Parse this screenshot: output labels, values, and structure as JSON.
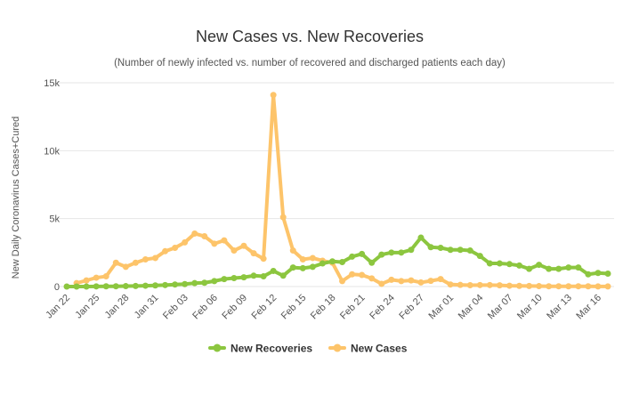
{
  "chart_data": {
    "type": "line",
    "title": "New Cases vs. New Recoveries",
    "subtitle": "(Number of newly infected vs. number of recovered and discharged patients each day)",
    "ylabel": "New Daily Coronavirus Cases+Cured",
    "ylim": [
      0,
      15000
    ],
    "yticks": [
      0,
      5000,
      10000,
      15000
    ],
    "ytick_labels": [
      "0",
      "5k",
      "10k",
      "15k"
    ],
    "grid": true,
    "legend_position": "bottom-center",
    "x": [
      "Jan 22",
      "Jan 23",
      "Jan 24",
      "Jan 25",
      "Jan 26",
      "Jan 27",
      "Jan 28",
      "Jan 29",
      "Jan 30",
      "Jan 31",
      "Feb 01",
      "Feb 02",
      "Feb 03",
      "Feb 04",
      "Feb 05",
      "Feb 06",
      "Feb 07",
      "Feb 08",
      "Feb 09",
      "Feb 10",
      "Feb 11",
      "Feb 12",
      "Feb 13",
      "Feb 14",
      "Feb 15",
      "Feb 16",
      "Feb 17",
      "Feb 18",
      "Feb 19",
      "Feb 20",
      "Feb 21",
      "Feb 22",
      "Feb 23",
      "Feb 24",
      "Feb 25",
      "Feb 26",
      "Feb 27",
      "Feb 28",
      "Feb 29",
      "Mar 01",
      "Mar 02",
      "Mar 03",
      "Mar 04",
      "Mar 05",
      "Mar 06",
      "Mar 07",
      "Mar 08",
      "Mar 09",
      "Mar 10",
      "Mar 11",
      "Mar 12",
      "Mar 13",
      "Mar 14",
      "Mar 15",
      "Mar 16",
      "Mar 17"
    ],
    "x_tick_labels": [
      "Jan 22",
      "Jan 25",
      "Jan 28",
      "Jan 31",
      "Feb 03",
      "Feb 06",
      "Feb 09",
      "Feb 12",
      "Feb 15",
      "Feb 18",
      "Feb 21",
      "Feb 24",
      "Feb 27",
      "Mar 01",
      "Mar 04",
      "Mar 07",
      "Mar 10",
      "Mar 13",
      "Mar 16"
    ],
    "series": [
      {
        "name": "New Recoveries",
        "color": "#8cc63f",
        "values": [
          0,
          0,
          0,
          12,
          15,
          20,
          30,
          40,
          60,
          80,
          110,
          150,
          180,
          250,
          280,
          400,
          550,
          620,
          680,
          800,
          750,
          1150,
          800,
          1400,
          1350,
          1450,
          1700,
          1850,
          1800,
          2200,
          2400,
          1750,
          2350,
          2500,
          2500,
          2700,
          3600,
          2900,
          2850,
          2700,
          2700,
          2650,
          2250,
          1700,
          1700,
          1650,
          1550,
          1300,
          1600,
          1300,
          1300,
          1400,
          1400,
          900,
          1000,
          950
        ]
      },
      {
        "name": "New Cases",
        "color": "#fdc46a",
        "values": [
          null,
          250,
          450,
          650,
          750,
          1750,
          1450,
          1750,
          2000,
          2100,
          2600,
          2850,
          3250,
          3900,
          3700,
          3150,
          3400,
          2650,
          3000,
          2450,
          2050,
          14100,
          5100,
          2650,
          2000,
          2100,
          1900,
          1750,
          400,
          900,
          850,
          600,
          200,
          500,
          400,
          450,
          300,
          420,
          550,
          150,
          120,
          100,
          110,
          110,
          90,
          60,
          50,
          40,
          30,
          20,
          20,
          15,
          20,
          15,
          10,
          10
        ]
      }
    ]
  }
}
